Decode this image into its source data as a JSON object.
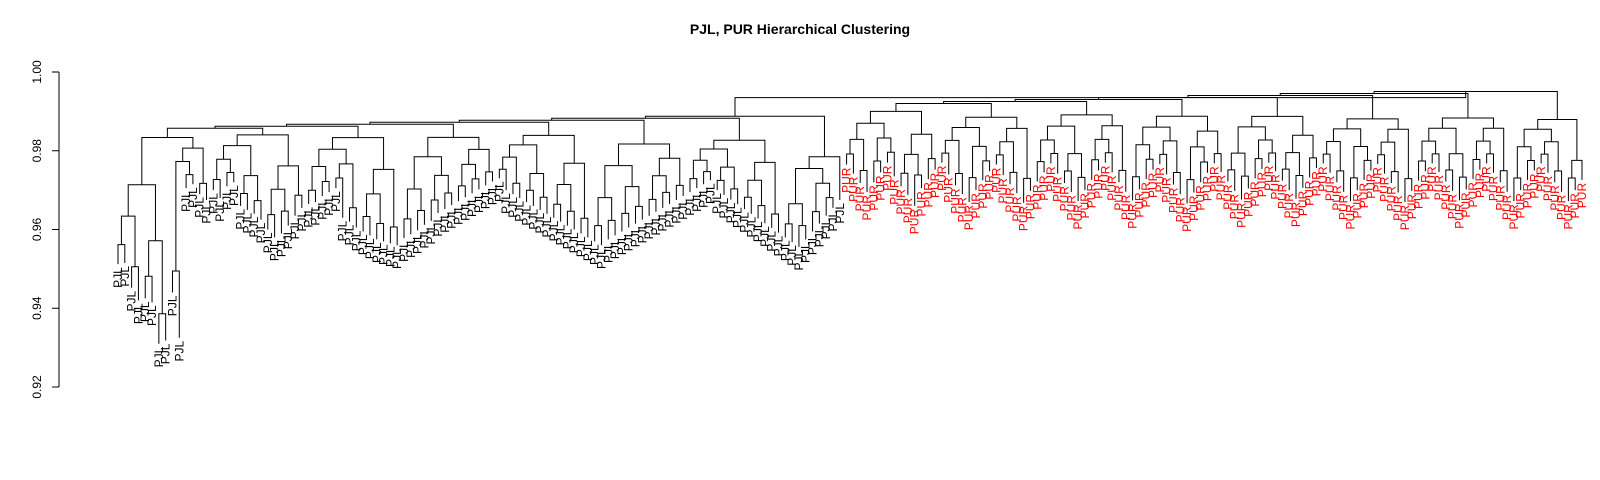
{
  "chart_data": {
    "type": "dendrogram",
    "title": "PJL, PUR Hierarchical Clustering",
    "xlabel": "",
    "ylabel": "",
    "ylim": [
      0.92,
      1.0
    ],
    "y_ticks": [
      "0.92",
      "0.94",
      "0.96",
      "0.98",
      "1.00"
    ],
    "y_tick_values": [
      0.92,
      0.94,
      0.96,
      0.98,
      1.0
    ],
    "root_height": 0.9935,
    "groups": [
      {
        "label": "PJL",
        "color": "#000000",
        "leaf_count": 107
      },
      {
        "label": "PUR",
        "color": "#ff0000",
        "leaf_count": 109
      }
    ],
    "subcluster_merge_heights": {
      "PJL": [
        0.9845,
        0.9852,
        0.9848,
        0.985,
        0.9847,
        0.984,
        0.9832,
        0.98
      ],
      "PUR": [
        0.9915,
        0.9895,
        0.9903,
        0.99,
        0.9898,
        0.989,
        0.9893,
        0.9888
      ]
    },
    "leaf_label_heights": {
      "PJL": [
        0.9512,
        0.9515,
        0.9452,
        0.942,
        0.9425,
        0.9415,
        0.931,
        0.9318,
        0.944,
        0.9325,
        0.9705,
        0.9715,
        0.969,
        0.9675,
        0.97,
        0.968,
        0.971,
        0.972,
        0.966,
        0.965,
        0.964,
        0.9625,
        0.96,
        0.958,
        0.959,
        0.961,
        0.9635,
        0.9655,
        0.9665,
        0.967,
        0.9685,
        0.9695,
        0.9705,
        0.963,
        0.962,
        0.9605,
        0.9595,
        0.9585,
        0.9575,
        0.957,
        0.9565,
        0.956,
        0.9578,
        0.9588,
        0.9598,
        0.9612,
        0.9622,
        0.9642,
        0.9652,
        0.9662,
        0.9672,
        0.9682,
        0.9692,
        0.9702,
        0.9712,
        0.9722,
        0.973,
        0.97,
        0.969,
        0.968,
        0.967,
        0.966,
        0.965,
        0.964,
        0.963,
        0.962,
        0.961,
        0.96,
        0.959,
        0.958,
        0.957,
        0.956,
        0.9575,
        0.9585,
        0.9595,
        0.9605,
        0.9615,
        0.9625,
        0.9635,
        0.9645,
        0.9655,
        0.9665,
        0.9675,
        0.9685,
        0.9695,
        0.9705,
        0.9715,
        0.9725,
        0.97,
        0.9688,
        0.9676,
        0.9664,
        0.9652,
        0.964,
        0.9628,
        0.9616,
        0.9604,
        0.9592,
        0.958,
        0.9568,
        0.9556,
        0.9575,
        0.9595,
        0.9615,
        0.9635,
        0.9655,
        0.9675
      ],
      "PUR": [
        0.9765,
        0.9742,
        0.9718,
        0.9695,
        0.972,
        0.9745,
        0.977,
        0.9735,
        0.971,
        0.9688,
        0.966,
        0.9705,
        0.9728,
        0.9752,
        0.977,
        0.974,
        0.9712,
        0.969,
        0.967,
        0.97,
        0.9725,
        0.9748,
        0.9765,
        0.9738,
        0.9715,
        0.9692,
        0.9668,
        0.9698,
        0.9722,
        0.9745,
        0.9768,
        0.9742,
        0.9718,
        0.9695,
        0.9672,
        0.97,
        0.9726,
        0.975,
        0.977,
        0.9745,
        0.972,
        0.9696,
        0.9674,
        0.9702,
        0.9728,
        0.9752,
        0.9766,
        0.974,
        0.9714,
        0.969,
        0.9666,
        0.9694,
        0.972,
        0.9744,
        0.9768,
        0.9746,
        0.9722,
        0.9698,
        0.9676,
        0.9704,
        0.973,
        0.9754,
        0.977,
        0.9748,
        0.9724,
        0.97,
        0.9678,
        0.9706,
        0.9732,
        0.9756,
        0.9768,
        0.9744,
        0.972,
        0.9696,
        0.9672,
        0.97,
        0.9726,
        0.975,
        0.9766,
        0.9742,
        0.9718,
        0.9694,
        0.967,
        0.9698,
        0.9724,
        0.9748,
        0.9768,
        0.9746,
        0.9722,
        0.9698,
        0.9674,
        0.9702,
        0.9728,
        0.9752,
        0.9768,
        0.9744,
        0.972,
        0.9696,
        0.9672,
        0.97,
        0.9726,
        0.975,
        0.9768,
        0.9744,
        0.972,
        0.9696,
        0.9672,
        0.97,
        0.9726
      ]
    }
  }
}
